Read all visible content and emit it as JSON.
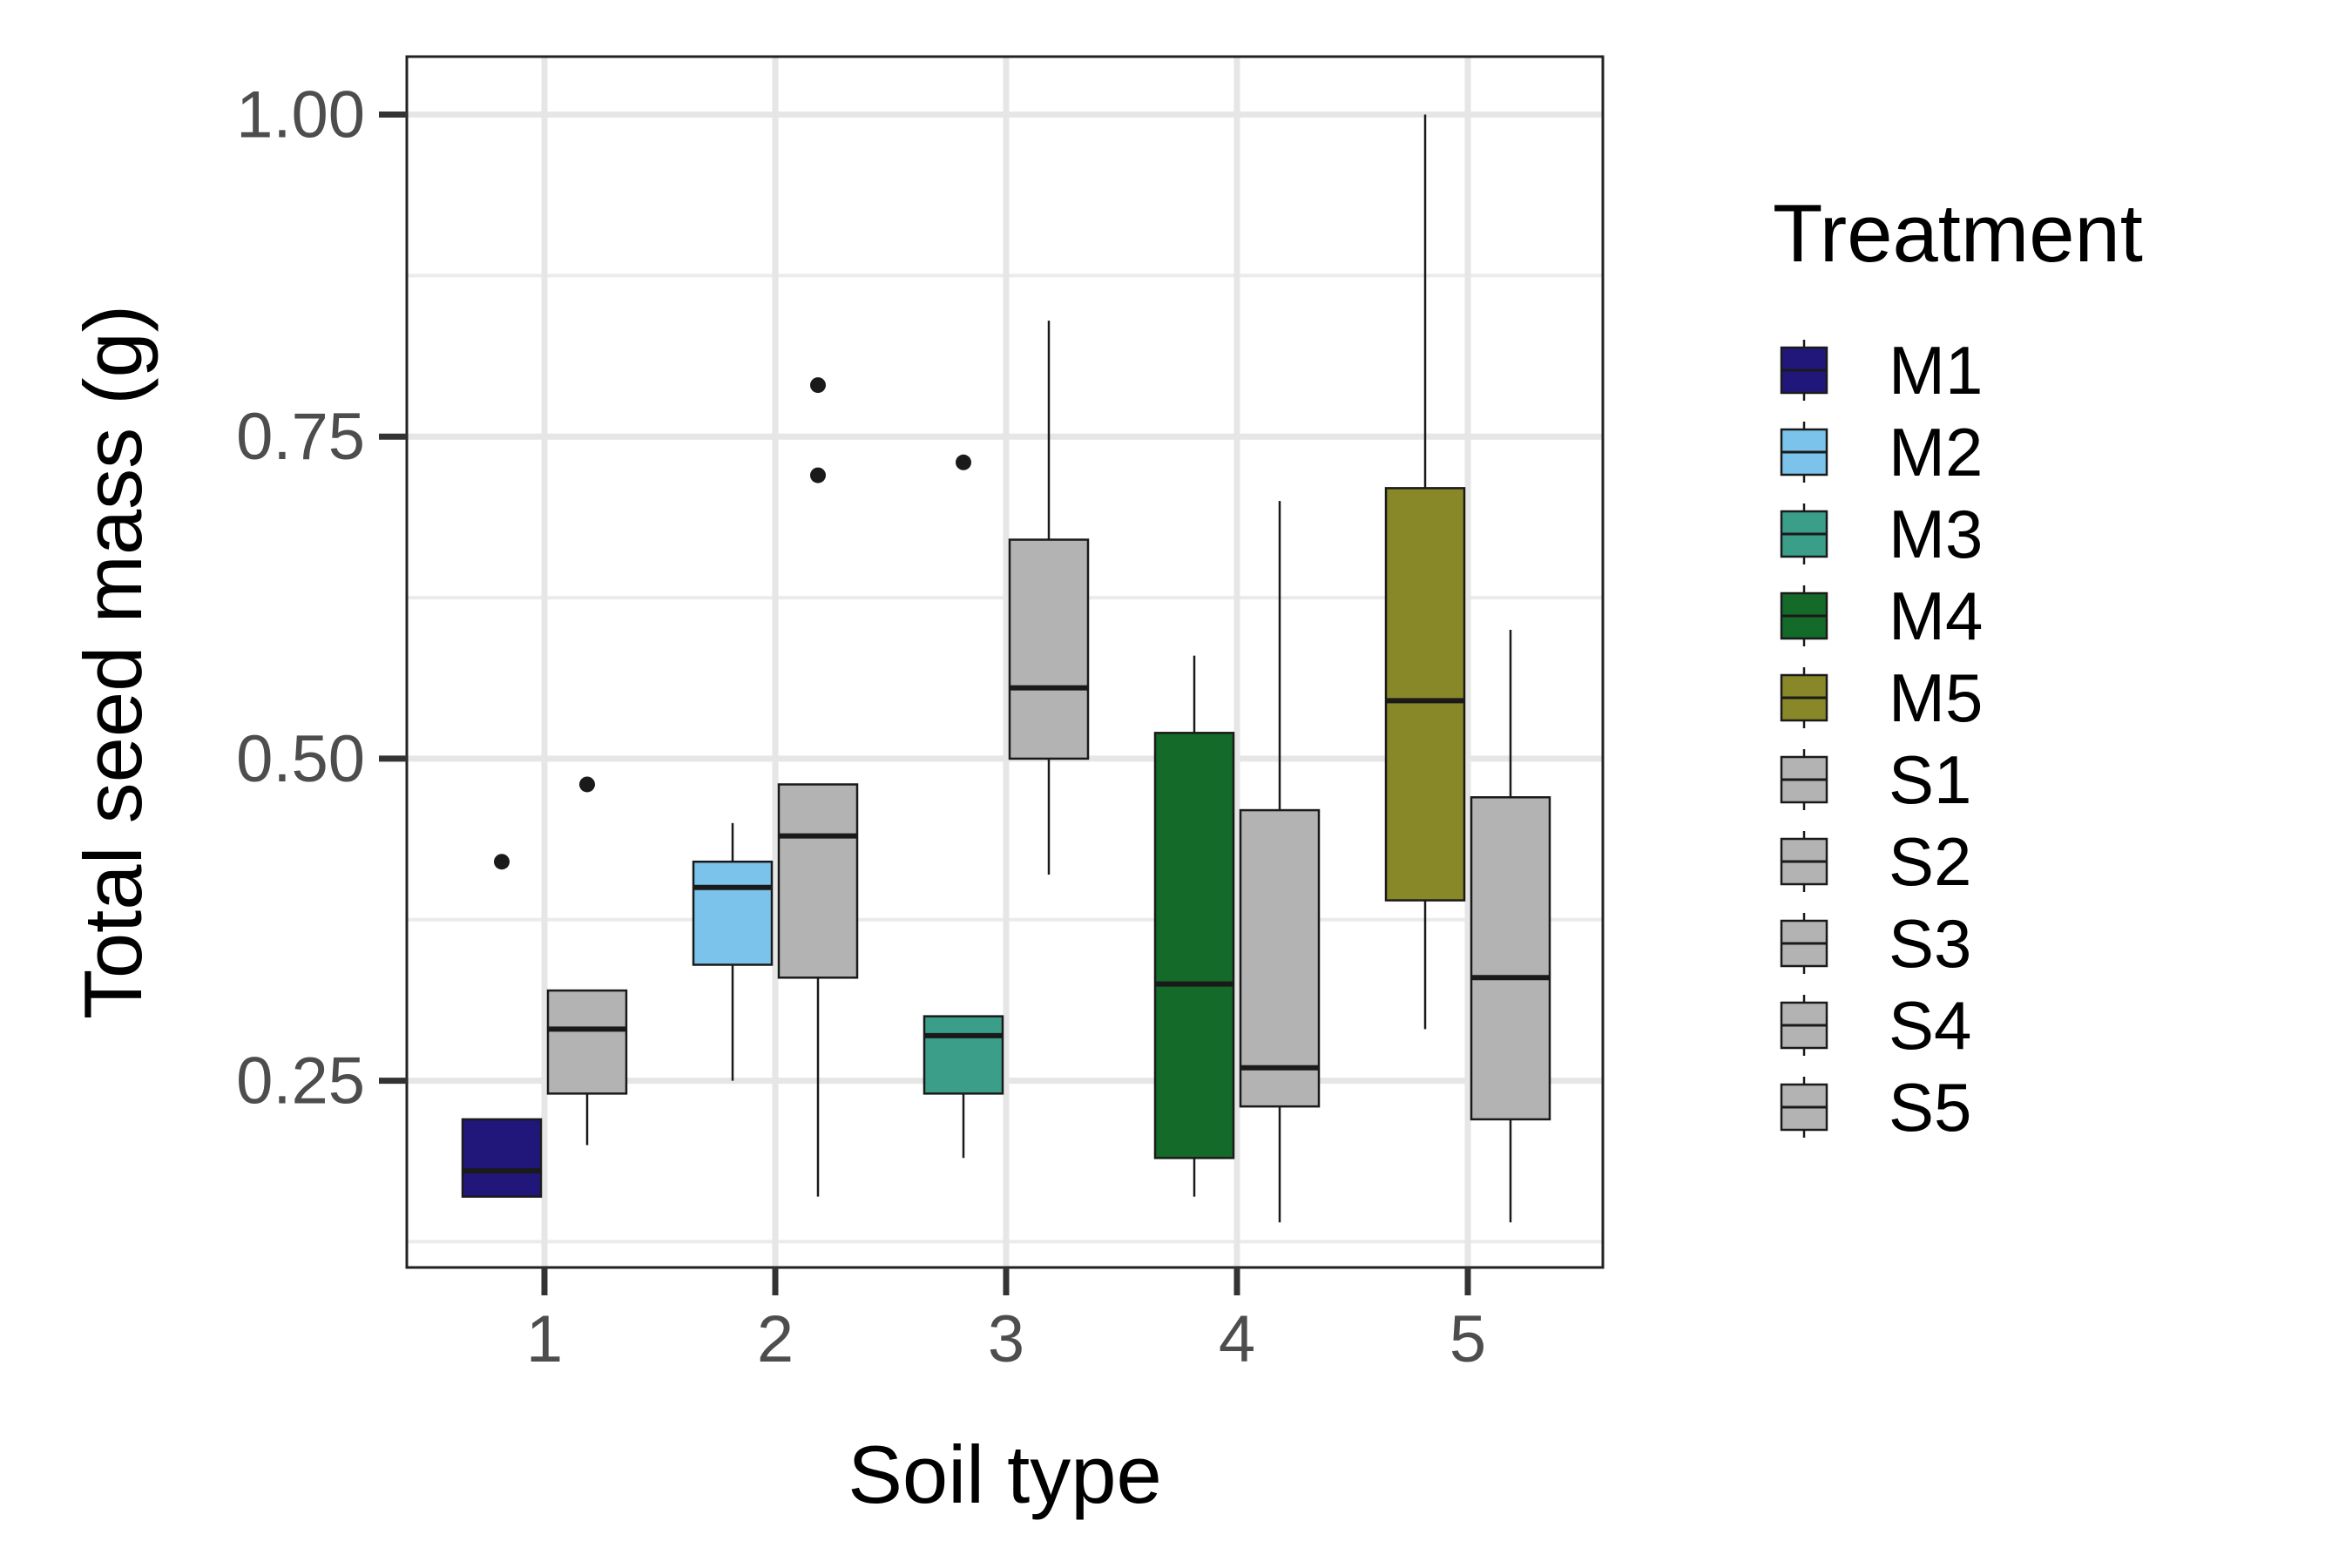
{
  "chart_data": {
    "type": "boxplot",
    "xlabel": "Soil type",
    "ylabel": "Total seed mass (g)",
    "categories": [
      "1",
      "2",
      "3",
      "4",
      "5"
    ],
    "ylim": [
      0.105,
      1.045
    ],
    "yticks": [
      0.25,
      0.5,
      0.75,
      1.0
    ],
    "ytick_labels": [
      "0.25",
      "0.50",
      "0.75",
      "1.00"
    ],
    "grid": true,
    "legend_title": "Treatment",
    "legend_position": "right",
    "legend": [
      {
        "label": "M1",
        "color": "#21177A"
      },
      {
        "label": "M2",
        "color": "#7BC3EA"
      },
      {
        "label": "M3",
        "color": "#3A9E88"
      },
      {
        "label": "M4",
        "color": "#136A29"
      },
      {
        "label": "M5",
        "color": "#888829"
      },
      {
        "label": "S1",
        "color": "#B3B3B3"
      },
      {
        "label": "S2",
        "color": "#B3B3B3"
      },
      {
        "label": "S3",
        "color": "#B3B3B3"
      },
      {
        "label": "S4",
        "color": "#B3B3B3"
      },
      {
        "label": "S5",
        "color": "#B3B3B3"
      }
    ],
    "boxes": [
      {
        "category": "1",
        "treatment": "M1",
        "color": "#21177A",
        "whisker_low": 0.16,
        "q1": 0.16,
        "median": 0.18,
        "q3": 0.22,
        "whisker_high": 0.22,
        "outliers": [
          0.42
        ]
      },
      {
        "category": "1",
        "treatment": "S1",
        "color": "#B3B3B3",
        "whisker_low": 0.2,
        "q1": 0.24,
        "median": 0.29,
        "q3": 0.32,
        "whisker_high": 0.32,
        "outliers": [
          0.48
        ]
      },
      {
        "category": "2",
        "treatment": "M2",
        "color": "#7BC3EA",
        "whisker_low": 0.25,
        "q1": 0.34,
        "median": 0.4,
        "q3": 0.42,
        "whisker_high": 0.45,
        "outliers": []
      },
      {
        "category": "2",
        "treatment": "S2",
        "color": "#B3B3B3",
        "whisker_low": 0.16,
        "q1": 0.33,
        "median": 0.44,
        "q3": 0.48,
        "whisker_high": 0.48,
        "outliers": [
          0.72,
          0.79
        ]
      },
      {
        "category": "3",
        "treatment": "M3",
        "color": "#3A9E88",
        "whisker_low": 0.19,
        "q1": 0.24,
        "median": 0.285,
        "q3": 0.3,
        "whisker_high": 0.3,
        "outliers": [
          0.73
        ]
      },
      {
        "category": "3",
        "treatment": "S3",
        "color": "#B3B3B3",
        "whisker_low": 0.41,
        "q1": 0.5,
        "median": 0.555,
        "q3": 0.67,
        "whisker_high": 0.84,
        "outliers": []
      },
      {
        "category": "4",
        "treatment": "M4",
        "color": "#136A29",
        "whisker_low": 0.16,
        "q1": 0.19,
        "median": 0.325,
        "q3": 0.52,
        "whisker_high": 0.58,
        "outliers": []
      },
      {
        "category": "4",
        "treatment": "S4",
        "color": "#B3B3B3",
        "whisker_low": 0.14,
        "q1": 0.23,
        "median": 0.26,
        "q3": 0.46,
        "whisker_high": 0.7,
        "outliers": []
      },
      {
        "category": "5",
        "treatment": "M5",
        "color": "#888829",
        "whisker_low": 0.29,
        "q1": 0.39,
        "median": 0.545,
        "q3": 0.71,
        "whisker_high": 1.0,
        "outliers": []
      },
      {
        "category": "5",
        "treatment": "S5",
        "color": "#B3B3B3",
        "whisker_low": 0.14,
        "q1": 0.22,
        "median": 0.33,
        "q3": 0.47,
        "whisker_high": 0.6,
        "outliers": []
      }
    ]
  }
}
